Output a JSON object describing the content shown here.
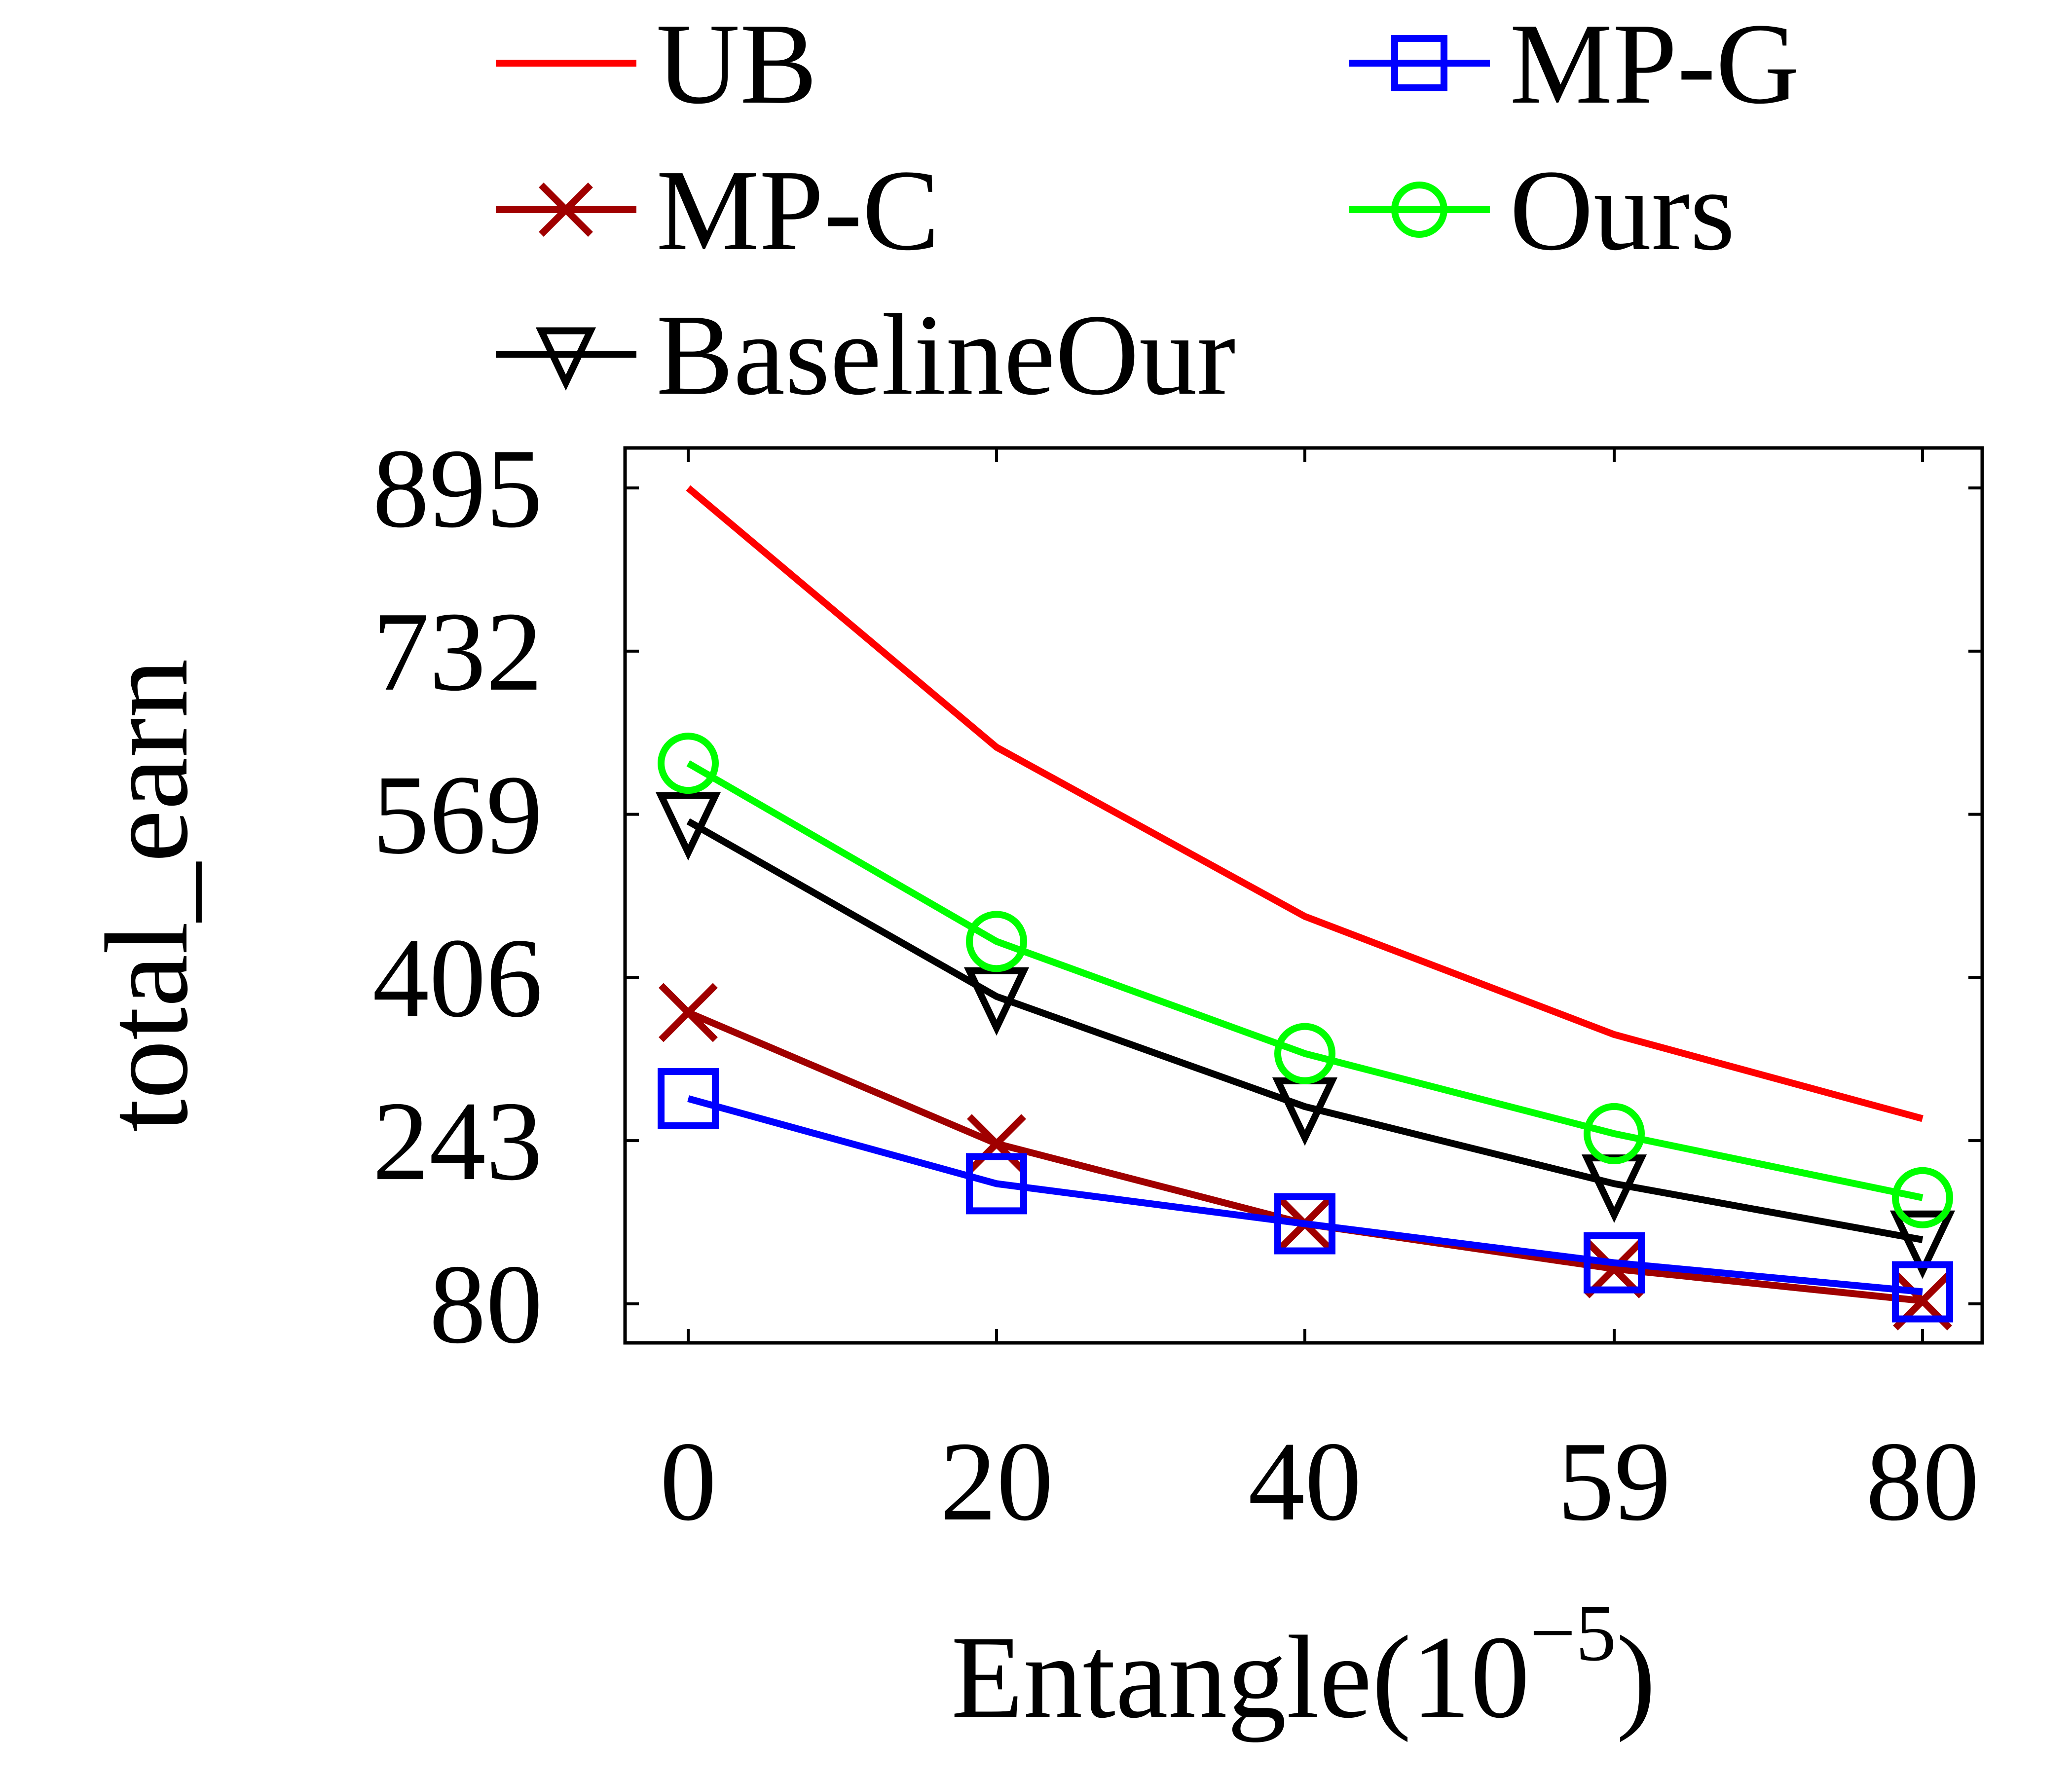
{
  "chart_data": {
    "type": "line",
    "xlabel": "Entangle(10",
    "xlabel_exponent": "−5",
    "xlabel_close": ")",
    "ylabel": "total_earn",
    "x": [
      0,
      20,
      40,
      59,
      80
    ],
    "xtick_labels": [
      "0",
      "20",
      "40",
      "59",
      "80"
    ],
    "yticks": [
      80,
      243,
      406,
      569,
      732,
      895
    ],
    "ytick_labels": [
      "80",
      "243",
      "406",
      "569",
      "732",
      "895"
    ],
    "ylim": [
      41,
      935
    ],
    "grid": false,
    "legend_position": "top",
    "series": [
      {
        "name": "UB",
        "color": "#ff0000",
        "marker": "none",
        "values": [
          895,
          636,
          467,
          349,
          265
        ]
      },
      {
        "name": "MP-C",
        "color": "#a00000",
        "marker": "x",
        "values": [
          371,
          240,
          160,
          115,
          83
        ]
      },
      {
        "name": "BaselineOur",
        "color": "#000000",
        "marker": "triangle-down",
        "values": [
          562,
          387,
          277,
          200,
          144
        ]
      },
      {
        "name": "MP-G",
        "color": "#0000ff",
        "marker": "square",
        "values": [
          285,
          200,
          160,
          121,
          92
        ]
      },
      {
        "name": "Ours",
        "color": "#00ff00",
        "marker": "circle",
        "values": [
          620,
          442,
          330,
          250,
          186
        ]
      }
    ]
  }
}
